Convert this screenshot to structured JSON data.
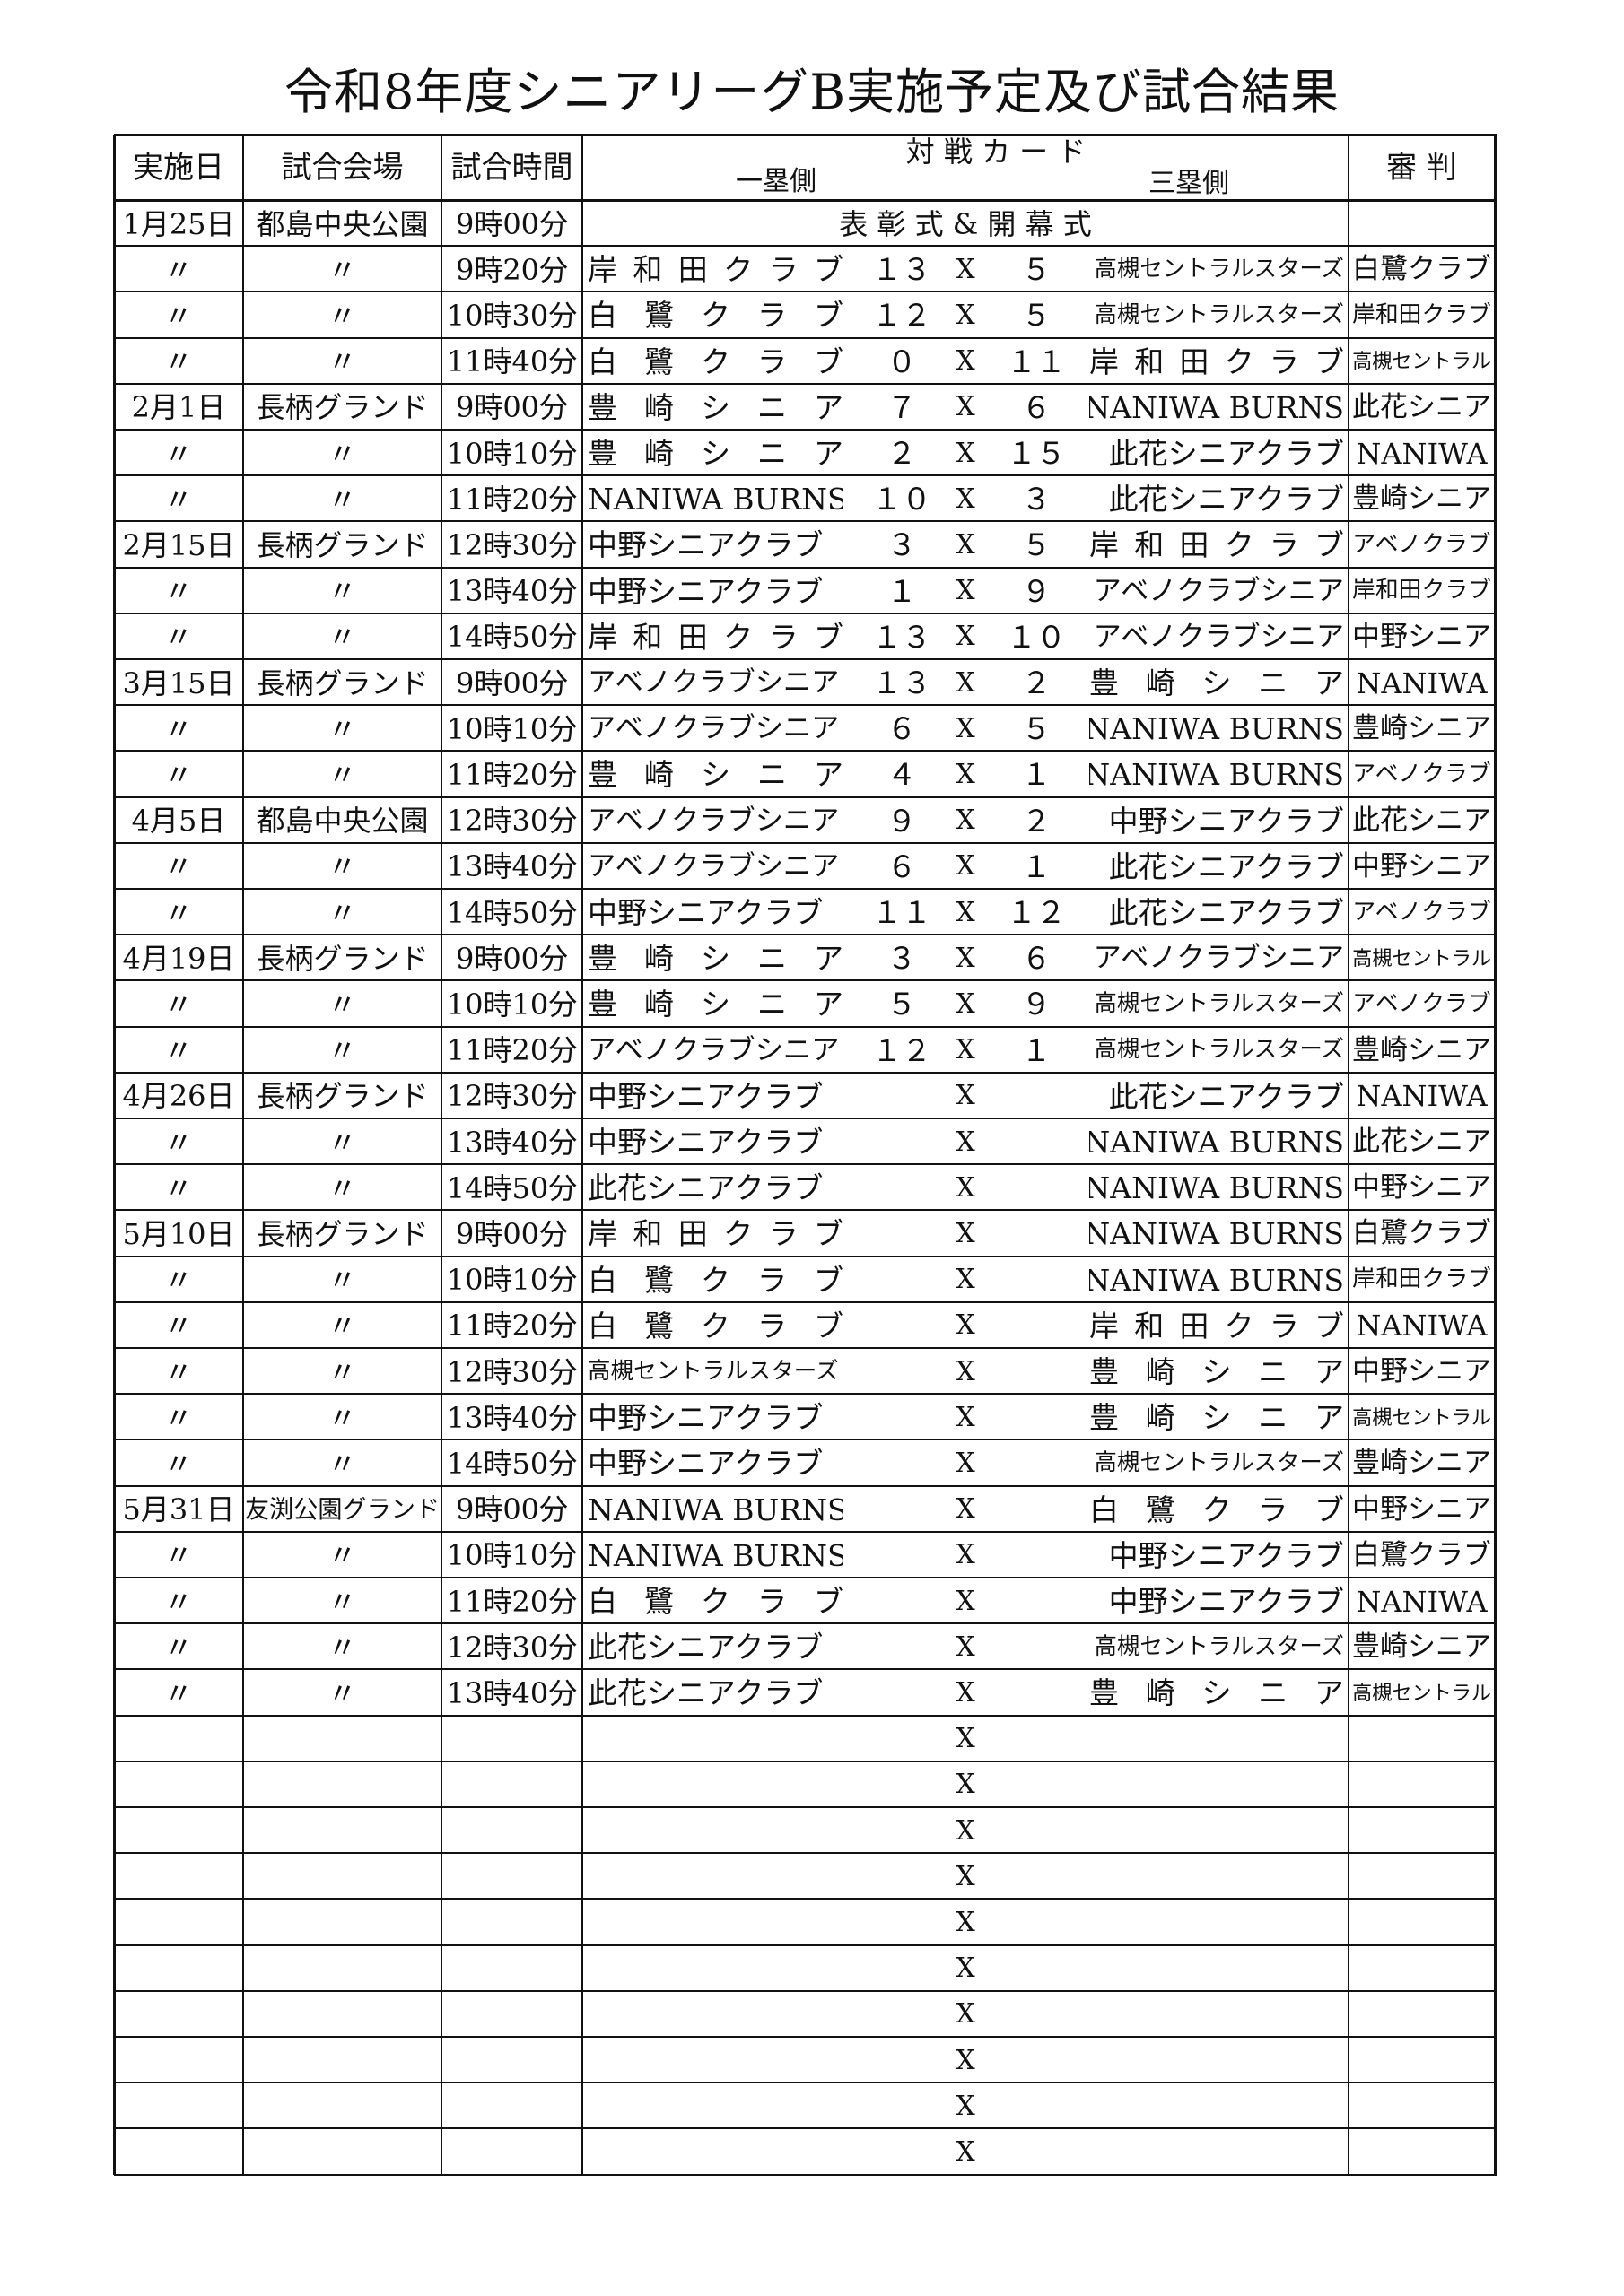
{
  "title": "令和8年度シニアリーグB実施予定及び試合結果",
  "header": {
    "date": "実施日",
    "venue": "試合会場",
    "time": "試合時間",
    "match": "対 戦 カ ー ド",
    "first": "一塁側",
    "third": "三塁側",
    "umpire": "審 判"
  },
  "rows": [
    {
      "date": "1月25日",
      "venue": "都島中央公園",
      "time": "9時00分",
      "event": "表 彰 式 & 開 幕 式"
    },
    {
      "date": "〃",
      "venue": "〃",
      "time": "9時20分",
      "home": "岸和田クラブ",
      "hs": "１３",
      "vs": "X",
      "as": "５",
      "away": "高槻セントラルスターズ",
      "ump": "白鷺クラブ"
    },
    {
      "date": "〃",
      "venue": "〃",
      "time": "10時30分",
      "home": "白鷺クラブ",
      "hs": "１２",
      "vs": "X",
      "as": "５",
      "away": "高槻セントラルスターズ",
      "ump": "岸和田クラブ"
    },
    {
      "date": "〃",
      "venue": "〃",
      "time": "11時40分",
      "home": "白鷺クラブ",
      "hs": "０",
      "vs": "X",
      "as": "１１",
      "away": "岸和田クラブ",
      "ump": "高槻セントラル"
    },
    {
      "date": "2月1日",
      "venue": "長柄グランド",
      "time": "9時00分",
      "home": "豊崎シニア",
      "hs": "７",
      "vs": "X",
      "as": "６",
      "away": "NANIWA BURNS",
      "ump": "此花シニア"
    },
    {
      "date": "〃",
      "venue": "〃",
      "time": "10時10分",
      "home": "豊崎シニア",
      "hs": "２",
      "vs": "X",
      "as": "１５",
      "away": "此花シニアクラブ",
      "ump": "NANIWA"
    },
    {
      "date": "〃",
      "venue": "〃",
      "time": "11時20分",
      "home": "NANIWA BURNS",
      "hs": "１０",
      "vs": "X",
      "as": "３",
      "away": "此花シニアクラブ",
      "ump": "豊崎シニア"
    },
    {
      "date": "2月15日",
      "venue": "長柄グランド",
      "time": "12時30分",
      "home": "中野シニアクラブ",
      "hs": "３",
      "vs": "X",
      "as": "５",
      "away": "岸和田クラブ",
      "ump": "アベノクラブ"
    },
    {
      "date": "〃",
      "venue": "〃",
      "time": "13時40分",
      "home": "中野シニアクラブ",
      "hs": "１",
      "vs": "X",
      "as": "９",
      "away": "アベノクラブシニア",
      "ump": "岸和田クラブ"
    },
    {
      "date": "〃",
      "venue": "〃",
      "time": "14時50分",
      "home": "岸和田クラブ",
      "hs": "１３",
      "vs": "X",
      "as": "１０",
      "away": "アベノクラブシニア",
      "ump": "中野シニア"
    },
    {
      "date": "3月15日",
      "venue": "長柄グランド",
      "time": "9時00分",
      "home": "アベノクラブシニア",
      "hs": "１３",
      "vs": "X",
      "as": "２",
      "away": "豊崎シニア",
      "ump": "NANIWA"
    },
    {
      "date": "〃",
      "venue": "〃",
      "time": "10時10分",
      "home": "アベノクラブシニア",
      "hs": "６",
      "vs": "X",
      "as": "５",
      "away": "NANIWA BURNS",
      "ump": "豊崎シニア"
    },
    {
      "date": "〃",
      "venue": "〃",
      "time": "11時20分",
      "home": "豊崎シニア",
      "hs": "４",
      "vs": "X",
      "as": "１",
      "away": "NANIWA BURNS",
      "ump": "アベノクラブ"
    },
    {
      "date": "4月5日",
      "venue": "都島中央公園",
      "time": "12時30分",
      "home": "アベノクラブシニア",
      "hs": "９",
      "vs": "X",
      "as": "２",
      "away": "中野シニアクラブ",
      "ump": "此花シニア"
    },
    {
      "date": "〃",
      "venue": "〃",
      "time": "13時40分",
      "home": "アベノクラブシニア",
      "hs": "６",
      "vs": "X",
      "as": "１",
      "away": "此花シニアクラブ",
      "ump": "中野シニア"
    },
    {
      "date": "〃",
      "venue": "〃",
      "time": "14時50分",
      "home": "中野シニアクラブ",
      "hs": "１１",
      "vs": "X",
      "as": "１２",
      "away": "此花シニアクラブ",
      "ump": "アベノクラブ"
    },
    {
      "date": "4月19日",
      "venue": "長柄グランド",
      "time": "9時00分",
      "home": "豊崎シニア",
      "hs": "３",
      "vs": "X",
      "as": "６",
      "away": "アベノクラブシニア",
      "ump": "高槻セントラル"
    },
    {
      "date": "〃",
      "venue": "〃",
      "time": "10時10分",
      "home": "豊崎シニア",
      "hs": "５",
      "vs": "X",
      "as": "９",
      "away": "高槻セントラルスターズ",
      "ump": "アベノクラブ"
    },
    {
      "date": "〃",
      "venue": "〃",
      "time": "11時20分",
      "home": "アベノクラブシニア",
      "hs": "１２",
      "vs": "X",
      "as": "１",
      "away": "高槻セントラルスターズ",
      "ump": "豊崎シニア"
    },
    {
      "date": "4月26日",
      "venue": "長柄グランド",
      "time": "12時30分",
      "home": "中野シニアクラブ",
      "vs": "X",
      "away": "此花シニアクラブ",
      "ump": "NANIWA"
    },
    {
      "date": "〃",
      "venue": "〃",
      "time": "13時40分",
      "home": "中野シニアクラブ",
      "vs": "X",
      "away": "NANIWA BURNS",
      "ump": "此花シニア"
    },
    {
      "date": "〃",
      "venue": "〃",
      "time": "14時50分",
      "home": "此花シニアクラブ",
      "vs": "X",
      "away": "NANIWA BURNS",
      "ump": "中野シニア"
    },
    {
      "date": "5月10日",
      "venue": "長柄グランド",
      "time": "9時00分",
      "home": "岸和田クラブ",
      "vs": "X",
      "away": "NANIWA BURNS",
      "ump": "白鷺クラブ"
    },
    {
      "date": "〃",
      "venue": "〃",
      "time": "10時10分",
      "home": "白鷺クラブ",
      "vs": "X",
      "away": "NANIWA BURNS",
      "ump": "岸和田クラブ"
    },
    {
      "date": "〃",
      "venue": "〃",
      "time": "11時20分",
      "home": "白鷺クラブ",
      "vs": "X",
      "away": "岸和田クラブ",
      "ump": "NANIWA"
    },
    {
      "date": "〃",
      "venue": "〃",
      "time": "12時30分",
      "home": "高槻セントラルスターズ",
      "vs": "X",
      "away": "豊崎シニア",
      "ump": "中野シニア"
    },
    {
      "date": "〃",
      "venue": "〃",
      "time": "13時40分",
      "home": "中野シニアクラブ",
      "vs": "X",
      "away": "豊崎シニア",
      "ump": "高槻セントラル"
    },
    {
      "date": "〃",
      "venue": "〃",
      "time": "14時50分",
      "home": "中野シニアクラブ",
      "vs": "X",
      "away": "高槻セントラルスターズ",
      "ump": "豊崎シニア"
    },
    {
      "date": "5月31日",
      "venue": "友渕公園グランド",
      "time": "9時00分",
      "home": "NANIWA BURNS",
      "vs": "X",
      "away": "白鷺クラブ",
      "ump": "中野シニア"
    },
    {
      "date": "〃",
      "venue": "〃",
      "time": "10時10分",
      "home": "NANIWA BURNS",
      "vs": "X",
      "away": "中野シニアクラブ",
      "ump": "白鷺クラブ"
    },
    {
      "date": "〃",
      "venue": "〃",
      "time": "11時20分",
      "home": "白鷺クラブ",
      "vs": "X",
      "away": "中野シニアクラブ",
      "ump": "NANIWA"
    },
    {
      "date": "〃",
      "venue": "〃",
      "time": "12時30分",
      "home": "此花シニアクラブ",
      "vs": "X",
      "away": "高槻セントラルスターズ",
      "ump": "豊崎シニア"
    },
    {
      "date": "〃",
      "venue": "〃",
      "time": "13時40分",
      "home": "此花シニアクラブ",
      "vs": "X",
      "away": "豊崎シニア",
      "ump": "高槻セントラル"
    },
    {
      "vs": "X"
    },
    {
      "vs": "X"
    },
    {
      "vs": "X"
    },
    {
      "vs": "X"
    },
    {
      "vs": "X"
    },
    {
      "vs": "X"
    },
    {
      "vs": "X"
    },
    {
      "vs": "X"
    },
    {
      "vs": "X"
    },
    {
      "vs": "X"
    }
  ]
}
